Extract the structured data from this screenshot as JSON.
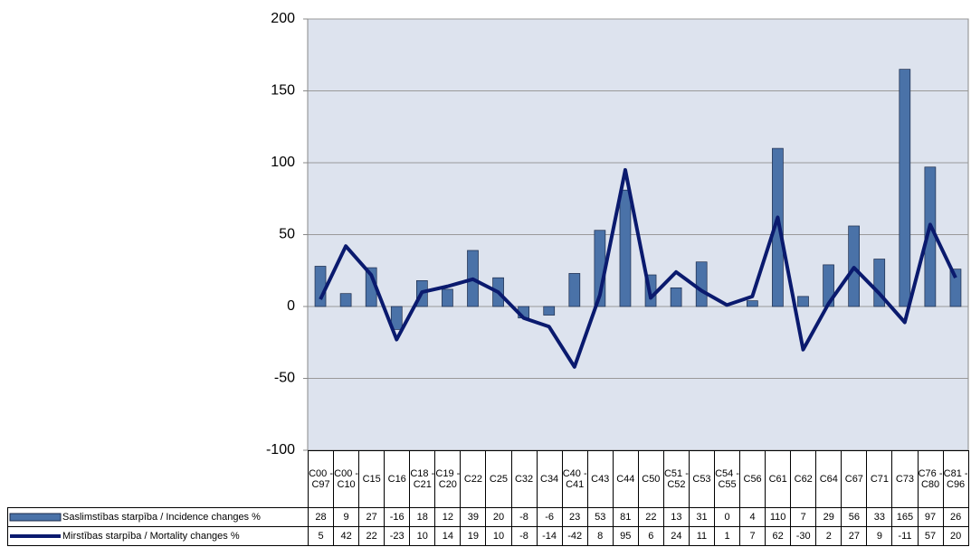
{
  "chart_data": {
    "type": "bar",
    "categories": [
      "C00 - C97",
      "C00 - C10",
      "C15",
      "C16",
      "C18 - C21",
      "C19 - C20",
      "C22",
      "C25",
      "C32",
      "C34",
      "C40 - C41",
      "C43",
      "C44",
      "C50",
      "C51 - C52",
      "C53",
      "C54 - C55",
      "C56",
      "C61",
      "C62",
      "C64",
      "C67",
      "C71",
      "C73",
      "C76 - C80",
      "C81 - C96"
    ],
    "series": [
      {
        "name": "Saslimstības starpība / Incidence changes %",
        "type": "bar",
        "color": "#4a72a8",
        "values": [
          28,
          9,
          27,
          -16,
          18,
          12,
          39,
          20,
          -8,
          -6,
          23,
          53,
          81,
          22,
          13,
          31,
          0,
          4,
          110,
          7,
          29,
          56,
          33,
          165,
          97,
          26
        ]
      },
      {
        "name": "Mirstības starpība / Mortality changes %",
        "type": "line",
        "color": "#0a1a6e",
        "values": [
          5,
          42,
          22,
          -23,
          10,
          14,
          19,
          10,
          -8,
          -14,
          -42,
          8,
          95,
          6,
          24,
          11,
          1,
          7,
          62,
          -30,
          2,
          27,
          9,
          -11,
          57,
          20
        ]
      }
    ],
    "ylim": [
      -100,
      200
    ],
    "yticks": [
      -100,
      -50,
      0,
      50,
      100,
      150,
      200
    ],
    "grid": true,
    "data_table": true
  }
}
